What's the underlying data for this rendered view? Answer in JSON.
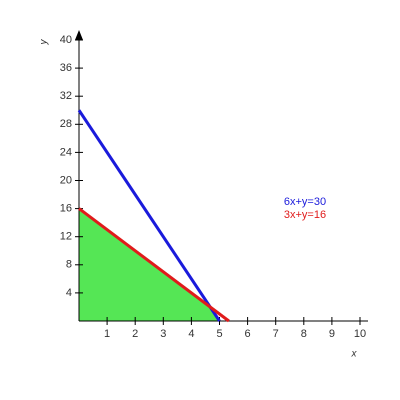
{
  "chart_data": {
    "type": "line",
    "x_label": "x",
    "y_label": "y",
    "xlim": [
      0,
      10
    ],
    "ylim": [
      0,
      40
    ],
    "xticks": [
      1,
      2,
      3,
      4,
      5,
      6,
      7,
      8,
      9,
      10
    ],
    "yticks": [
      4,
      8,
      12,
      16,
      20,
      24,
      28,
      32,
      36,
      40
    ],
    "region": {
      "color": "#55e655",
      "x": [
        0,
        0,
        4.667,
        5
      ],
      "y": [
        0,
        16,
        2,
        0
      ]
    },
    "series": [
      {
        "name": "6x+y=30",
        "color": "#1a1adb",
        "x": [
          0,
          5
        ],
        "y": [
          30,
          0
        ]
      },
      {
        "name": "3x+y=16",
        "color": "#e01b1b",
        "x": [
          0,
          5.333
        ],
        "y": [
          16,
          0
        ]
      }
    ]
  }
}
